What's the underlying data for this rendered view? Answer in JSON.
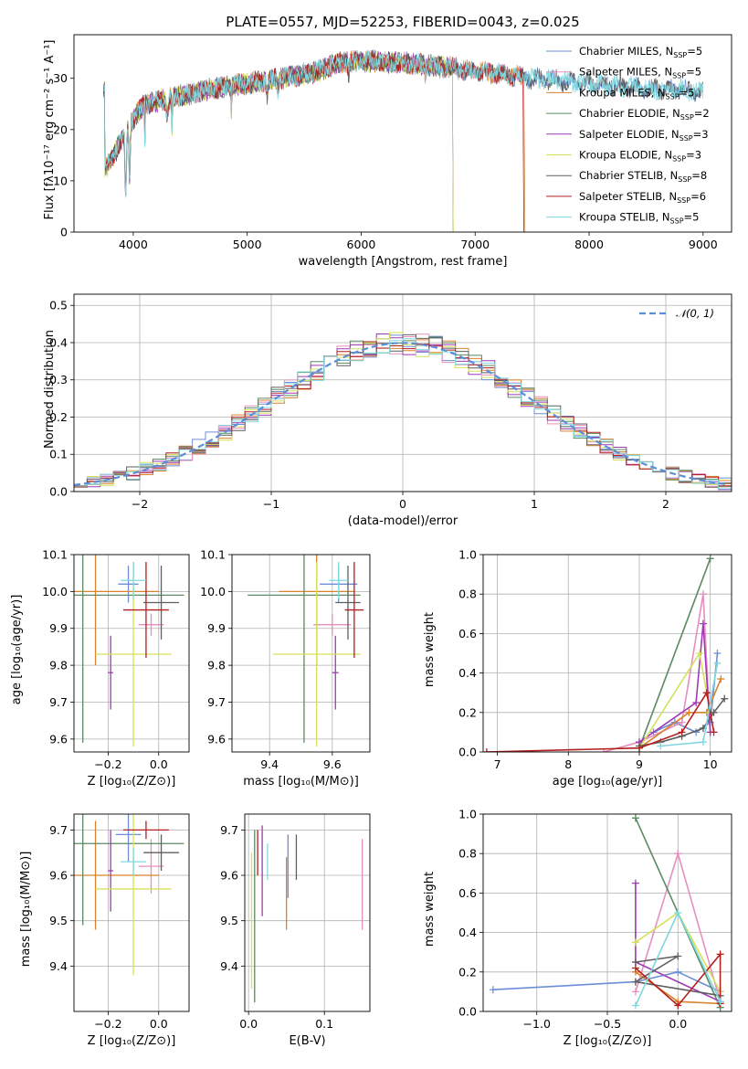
{
  "colors": {
    "Chabrier MILES": "#6c8ed8",
    "Salpeter MILES": "#e68fbf",
    "Kroupa MILES": "#d9822b",
    "Chabrier ELODIE": "#5b8a63",
    "Salpeter ELODIE": "#9e3ab3",
    "Kroupa ELODIE": "#d6e05a",
    "Chabrier STELIB": "#5f5f5f",
    "Salpeter STELIB": "#b41f1f",
    "Kroupa STELIB": "#7fd8e0",
    "gaussian": "#5b8ed9"
  },
  "chart_data": [
    {
      "type": "line",
      "id": "spectrum",
      "title": "PLATE=0557, MJD=52253, FIBERID=0043, z=0.025",
      "xlabel": "wavelength [Angstrom, rest frame]",
      "ylabel": "Flux [fλ10⁻¹⁷ erg cm⁻² s⁻¹ A⁻¹]",
      "xlim": [
        3480,
        9250
      ],
      "ylim": [
        0,
        38.5
      ],
      "xticks": [
        4000,
        5000,
        6000,
        7000,
        8000,
        9000
      ],
      "yticks": [
        0,
        10,
        20,
        30
      ],
      "legend_position": "upper right",
      "continuum": [
        [
          3750,
          12
        ],
        [
          3800,
          14
        ],
        [
          3900,
          18
        ],
        [
          4000,
          22
        ],
        [
          4100,
          25
        ],
        [
          4300,
          26
        ],
        [
          4500,
          27
        ],
        [
          4700,
          28
        ],
        [
          5000,
          29
        ],
        [
          5300,
          30
        ],
        [
          5600,
          31.2
        ],
        [
          5800,
          33
        ],
        [
          6000,
          33.5
        ],
        [
          6300,
          33
        ],
        [
          6600,
          32.5
        ],
        [
          7000,
          31.5
        ],
        [
          7500,
          30
        ],
        [
          8000,
          29
        ],
        [
          8500,
          28
        ],
        [
          9000,
          27.5
        ]
      ],
      "series": [
        {
          "name": "Chabrier MILES, N",
          "sub": "SSP",
          "tail": "=5",
          "xmax": 9000
        },
        {
          "name": "Salpeter MILES, N",
          "sub": "SSP",
          "tail": "=5",
          "xmax": 7420
        },
        {
          "name": "Kroupa MILES, N",
          "sub": "SSP",
          "tail": "=5",
          "xmax": 7430
        },
        {
          "name": "Chabrier ELODIE, N",
          "sub": "SSP",
          "tail": "=2",
          "xmax": 6800
        },
        {
          "name": "Salpeter ELODIE, N",
          "sub": "SSP",
          "tail": "=3",
          "xmax": 6800
        },
        {
          "name": "Kroupa ELODIE, N",
          "sub": "SSP",
          "tail": "=3",
          "xmax": 6800
        },
        {
          "name": "Chabrier STELIB, N",
          "sub": "SSP",
          "tail": "=8",
          "xmax": 9000
        },
        {
          "name": "Salpeter STELIB, N",
          "sub": "SSP",
          "tail": "=6",
          "xmax": 7420
        },
        {
          "name": "Kroupa STELIB, N",
          "sub": "SSP",
          "tail": "=5",
          "xmax": 9000
        }
      ]
    },
    {
      "type": "histogram",
      "id": "residuals",
      "xlabel": "(data-model)/error",
      "ylabel": "Normed distribution",
      "xlim": [
        -2.5,
        2.5
      ],
      "ylim": [
        0,
        0.53
      ],
      "xticks": [
        -2,
        -1,
        0,
        1,
        2
      ],
      "yticks": [
        0.0,
        0.1,
        0.2,
        0.3,
        0.4,
        0.5
      ],
      "bin_width": 0.1,
      "legend": "𝒩(0, 1)",
      "legend_position": "upper right"
    },
    {
      "type": "scatter",
      "id": "age-vs-Z",
      "xlabel": "Z [log₁₀(Z/Z⊙)]",
      "ylabel": "age  [log₁₀(age/yr)]",
      "xlim": [
        -0.335,
        0.12
      ],
      "ylim": [
        9.565,
        10.1
      ],
      "xticks": [
        -0.2,
        0.0
      ],
      "yticks": [
        9.6,
        9.7,
        9.8,
        9.9,
        10.0,
        10.1
      ],
      "points": [
        {
          "s": "Chabrier MILES",
          "x": -0.12,
          "y": 10.02,
          "xerr": 0.04,
          "yerr": 0.05
        },
        {
          "s": "Salpeter MILES",
          "x": -0.03,
          "y": 9.91,
          "xerr": 0.05,
          "yerr": 0.03
        },
        {
          "s": "Kroupa MILES",
          "x": -0.25,
          "y": 10.0,
          "xerr": 0.25,
          "yerr": 0.2
        },
        {
          "s": "Chabrier ELODIE",
          "x": -0.3,
          "y": 9.99,
          "xerr": 0.4,
          "yerr": 0.4
        },
        {
          "s": "Salpeter ELODIE",
          "x": -0.19,
          "y": 9.78,
          "xerr": 0.01,
          "yerr": 0.1
        },
        {
          "s": "Kroupa ELODIE",
          "x": -0.1,
          "y": 9.83,
          "xerr": 0.15,
          "yerr": 0.25
        },
        {
          "s": "Chabrier STELIB",
          "x": 0.01,
          "y": 9.97,
          "xerr": 0.07,
          "yerr": 0.1
        },
        {
          "s": "Salpeter STELIB",
          "x": -0.05,
          "y": 9.95,
          "xerr": 0.09,
          "yerr": 0.13
        },
        {
          "s": "Kroupa STELIB",
          "x": -0.1,
          "y": 10.03,
          "xerr": 0.05,
          "yerr": 0.05
        }
      ]
    },
    {
      "type": "scatter",
      "id": "age-vs-mass",
      "xlabel": "mass [log₁₀(M/M⊙)]",
      "xlim": [
        9.28,
        9.72
      ],
      "ylim": [
        9.565,
        10.1
      ],
      "xticks": [
        9.4,
        9.6
      ],
      "yticks": [
        9.6,
        9.7,
        9.8,
        9.9,
        10.0,
        10.1
      ],
      "points": [
        {
          "s": "Chabrier MILES",
          "x": 9.62,
          "y": 10.02,
          "xerr": 0.06,
          "yerr": 0.05
        },
        {
          "s": "Salpeter MILES",
          "x": 9.6,
          "y": 9.91,
          "xerr": 0.06,
          "yerr": 0.03
        },
        {
          "s": "Kroupa MILES",
          "x": 9.55,
          "y": 10.0,
          "xerr": 0.12,
          "yerr": 0.2
        },
        {
          "s": "Chabrier ELODIE",
          "x": 9.51,
          "y": 9.99,
          "xerr": 0.18,
          "yerr": 0.4
        },
        {
          "s": "Salpeter ELODIE",
          "x": 9.61,
          "y": 9.78,
          "xerr": 0.01,
          "yerr": 0.1
        },
        {
          "s": "Kroupa ELODIE",
          "x": 9.55,
          "y": 9.83,
          "xerr": 0.14,
          "yerr": 0.25
        },
        {
          "s": "Chabrier STELIB",
          "x": 9.65,
          "y": 9.97,
          "xerr": 0.04,
          "yerr": 0.1
        },
        {
          "s": "Salpeter STELIB",
          "x": 9.67,
          "y": 9.95,
          "xerr": 0.03,
          "yerr": 0.13
        },
        {
          "s": "Kroupa STELIB",
          "x": 9.62,
          "y": 10.03,
          "xerr": 0.03,
          "yerr": 0.05
        }
      ]
    },
    {
      "type": "line",
      "id": "weight-vs-age",
      "xlabel": "age  [log₁₀(age/yr)]",
      "ylabel": "mass weight",
      "xlim": [
        6.8,
        10.3
      ],
      "ylim": [
        0,
        1
      ],
      "xticks": [
        7,
        8,
        9,
        10
      ],
      "yticks": [
        0.0,
        0.2,
        0.4,
        0.6,
        0.8,
        1.0
      ],
      "series": [
        {
          "s": "Chabrier MILES",
          "pts": [
            [
              9.2,
              0.1
            ],
            [
              9.5,
              0.15
            ],
            [
              9.8,
              0.1
            ],
            [
              10.0,
              0.15
            ],
            [
              10.1,
              0.5
            ]
          ]
        },
        {
          "s": "Salpeter MILES",
          "pts": [
            [
              8.5,
              0.0
            ],
            [
              9.0,
              0.05
            ],
            [
              9.6,
              0.15
            ],
            [
              9.9,
              0.8
            ],
            [
              10.0,
              0.1
            ]
          ]
        },
        {
          "s": "Kroupa MILES",
          "pts": [
            [
              9.0,
              0.02
            ],
            [
              9.7,
              0.2
            ],
            [
              9.95,
              0.2
            ],
            [
              10.15,
              0.37
            ]
          ]
        },
        {
          "s": "Chabrier ELODIE",
          "pts": [
            [
              9.0,
              0.02
            ],
            [
              10.0,
              0.98
            ]
          ]
        },
        {
          "s": "Salpeter ELODIE",
          "pts": [
            [
              9.0,
              0.05
            ],
            [
              9.8,
              0.25
            ],
            [
              9.9,
              0.65
            ],
            [
              10.0,
              0.1
            ]
          ]
        },
        {
          "s": "Kroupa ELODIE",
          "pts": [
            [
              9.0,
              0.02
            ],
            [
              9.85,
              0.5
            ],
            [
              10.0,
              0.2
            ]
          ]
        },
        {
          "s": "Chabrier STELIB",
          "pts": [
            [
              9.0,
              0.03
            ],
            [
              9.3,
              0.05
            ],
            [
              9.6,
              0.08
            ],
            [
              9.9,
              0.12
            ],
            [
              10.05,
              0.2
            ],
            [
              10.2,
              0.27
            ]
          ]
        },
        {
          "s": "Salpeter STELIB",
          "pts": [
            [
              6.85,
              0.0
            ],
            [
              9.0,
              0.02
            ],
            [
              9.6,
              0.1
            ],
            [
              9.95,
              0.3
            ],
            [
              10.05,
              0.1
            ]
          ]
        },
        {
          "s": "Kroupa STELIB",
          "pts": [
            [
              9.3,
              0.03
            ],
            [
              9.9,
              0.05
            ],
            [
              10.1,
              0.45
            ]
          ]
        }
      ]
    },
    {
      "type": "scatter",
      "id": "mass-vs-Z",
      "xlabel": "Z [log₁₀(Z/Z⊙)]",
      "ylabel": "mass [log₁₀(M/M⊙)]",
      "xlim": [
        -0.335,
        0.12
      ],
      "ylim": [
        9.3,
        9.735
      ],
      "xticks": [
        -0.2,
        0.0
      ],
      "yticks": [
        9.4,
        9.5,
        9.6,
        9.7
      ],
      "points": [
        {
          "s": "Chabrier MILES",
          "x": -0.12,
          "y": 9.69,
          "xerr": 0.05,
          "yerr": 0.06
        },
        {
          "s": "Salpeter MILES",
          "x": -0.03,
          "y": 9.62,
          "xerr": 0.05,
          "yerr": 0.06
        },
        {
          "s": "Kroupa MILES",
          "x": -0.25,
          "y": 9.6,
          "xerr": 0.25,
          "yerr": 0.12
        },
        {
          "s": "Chabrier ELODIE",
          "x": -0.3,
          "y": 9.67,
          "xerr": 0.4,
          "yerr": 0.18
        },
        {
          "s": "Salpeter ELODIE",
          "x": -0.19,
          "y": 9.61,
          "xerr": 0.01,
          "yerr": 0.09
        },
        {
          "s": "Kroupa ELODIE",
          "x": -0.1,
          "y": 9.57,
          "xerr": 0.15,
          "yerr": 0.19
        },
        {
          "s": "Chabrier STELIB",
          "x": 0.01,
          "y": 9.65,
          "xerr": 0.07,
          "yerr": 0.04
        },
        {
          "s": "Salpeter STELIB",
          "x": -0.05,
          "y": 9.7,
          "xerr": 0.09,
          "yerr": 0.02
        },
        {
          "s": "Kroupa STELIB",
          "x": -0.1,
          "y": 9.63,
          "xerr": 0.05,
          "yerr": 0.03
        }
      ]
    },
    {
      "type": "scatter",
      "id": "mass-vs-EBV",
      "xlabel": "E(B-V)",
      "xlim": [
        -0.005,
        0.16
      ],
      "ylim": [
        9.3,
        9.735
      ],
      "xticks": [
        0.0,
        0.1
      ],
      "yticks": [
        9.4,
        9.5,
        9.6,
        9.7
      ],
      "points": [
        {
          "s": "Chabrier MILES",
          "x": 0.052,
          "y": 9.62,
          "xerr": 0.0,
          "yerr": 0.07
        },
        {
          "s": "Salpeter MILES",
          "x": 0.15,
          "y": 9.58,
          "xerr": 0.0,
          "yerr": 0.1
        },
        {
          "s": "Kroupa MILES",
          "x": 0.05,
          "y": 9.56,
          "xerr": 0.0,
          "yerr": 0.08
        },
        {
          "s": "Chabrier ELODIE",
          "x": 0.008,
          "y": 9.51,
          "xerr": 0.0,
          "yerr": 0.19
        },
        {
          "s": "Salpeter ELODIE",
          "x": 0.018,
          "y": 9.61,
          "xerr": 0.0,
          "yerr": 0.1
        },
        {
          "s": "Kroupa ELODIE",
          "x": 0.004,
          "y": 9.5,
          "xerr": 0.0,
          "yerr": 0.15
        },
        {
          "s": "Chabrier STELIB",
          "x": 0.063,
          "y": 9.64,
          "xerr": 0.0,
          "yerr": 0.05
        },
        {
          "s": "Salpeter STELIB",
          "x": 0.012,
          "y": 9.65,
          "xerr": 0.0,
          "yerr": 0.05
        },
        {
          "s": "Kroupa STELIB",
          "x": 0.025,
          "y": 9.63,
          "xerr": 0.0,
          "yerr": 0.04
        }
      ]
    },
    {
      "type": "line",
      "id": "weight-vs-Z",
      "xlabel": "Z [log₁₀(Z/Z⊙)]",
      "ylabel": "mass weight",
      "xlim": [
        -1.38,
        0.38
      ],
      "ylim": [
        0,
        1
      ],
      "xticks": [
        -1.0,
        -0.5,
        0.0
      ],
      "yticks": [
        0.0,
        0.2,
        0.4,
        0.6,
        0.8,
        1.0
      ],
      "series": [
        {
          "s": "Chabrier MILES",
          "pts": [
            [
              -1.31,
              0.11
            ],
            [
              -0.3,
              0.15
            ],
            [
              0.0,
              0.2
            ],
            [
              0.3,
              0.1
            ]
          ]
        },
        {
          "s": "Salpeter MILES",
          "pts": [
            [
              -0.3,
              0.1
            ],
            [
              0.0,
              0.8
            ],
            [
              0.3,
              0.05
            ]
          ]
        },
        {
          "s": "Kroupa MILES",
          "pts": [
            [
              -0.3,
              0.2
            ],
            [
              0.0,
              0.05
            ],
            [
              0.3,
              0.04
            ]
          ]
        },
        {
          "s": "Chabrier ELODIE",
          "pts": [
            [
              -0.3,
              0.98
            ],
            [
              0.3,
              0.02
            ]
          ]
        },
        {
          "s": "Salpeter ELODIE",
          "pts": [
            [
              -0.3,
              0.65
            ],
            [
              -0.3,
              0.25
            ],
            [
              0.3,
              0.05
            ]
          ]
        },
        {
          "s": "Kroupa ELODIE",
          "pts": [
            [
              -0.3,
              0.35
            ],
            [
              0.0,
              0.5
            ],
            [
              0.3,
              0.1
            ]
          ]
        },
        {
          "s": "Chabrier STELIB",
          "pts": [
            [
              -0.3,
              0.25
            ],
            [
              0.0,
              0.28
            ],
            [
              -0.3,
              0.15
            ],
            [
              0.3,
              0.08
            ]
          ]
        },
        {
          "s": "Salpeter STELIB",
          "pts": [
            [
              -0.3,
              0.22
            ],
            [
              0.0,
              0.03
            ],
            [
              0.3,
              0.29
            ],
            [
              0.3,
              0.04
            ]
          ]
        },
        {
          "s": "Kroupa STELIB",
          "pts": [
            [
              -0.3,
              0.03
            ],
            [
              0.0,
              0.5
            ],
            [
              0.3,
              0.05
            ]
          ]
        }
      ]
    }
  ]
}
